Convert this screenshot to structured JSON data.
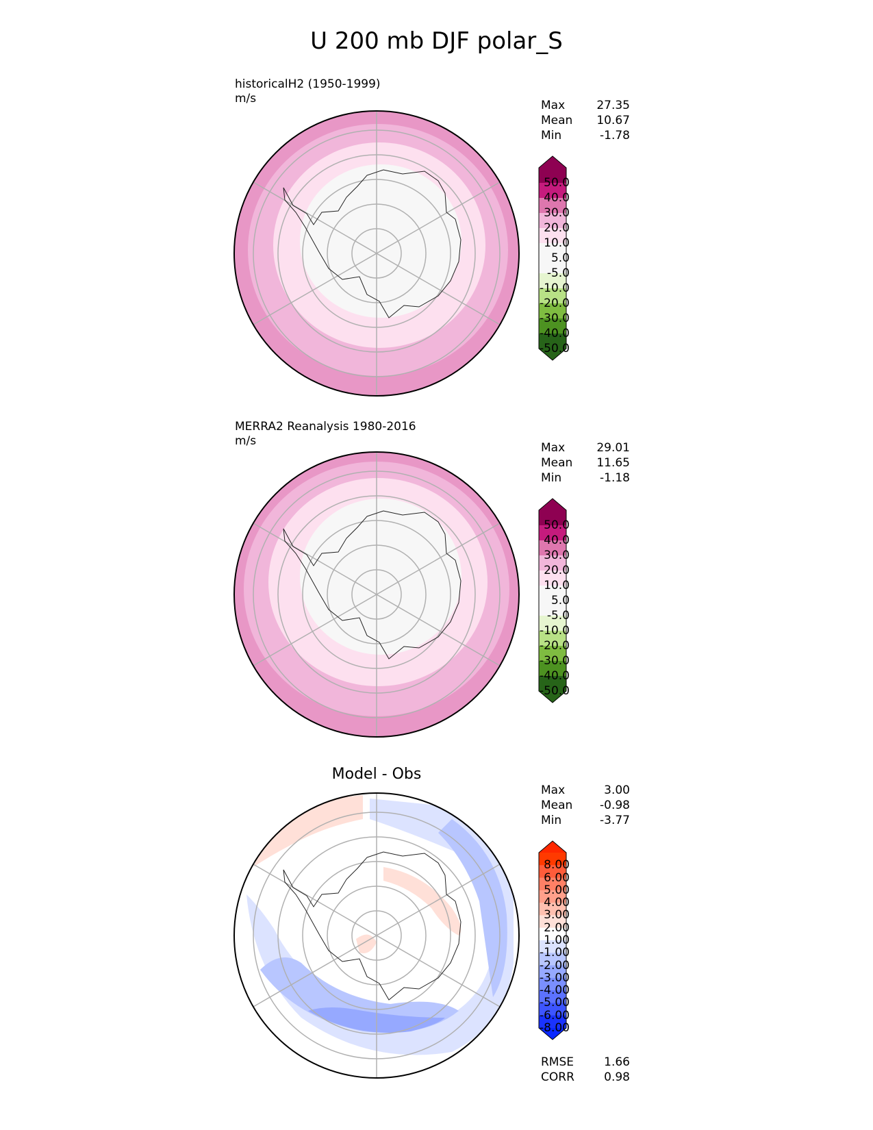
{
  "title": "U 200 mb DJF polar_S",
  "panels": [
    {
      "label": "historicalH2 (1950-1999)",
      "units": "m/s",
      "stats": {
        "max_label": "Max",
        "max": "27.35",
        "mean_label": "Mean",
        "mean": "10.67",
        "min_label": "Min",
        "min": "-1.78"
      }
    },
    {
      "label": "MERRA2 Reanalysis 1980-2016",
      "units": "m/s",
      "stats": {
        "max_label": "Max",
        "max": "29.01",
        "mean_label": "Mean",
        "mean": "11.65",
        "min_label": "Min",
        "min": "-1.18"
      }
    },
    {
      "label": "Model - Obs",
      "stats": {
        "max_label": "Max",
        "max": "3.00",
        "mean_label": "Mean",
        "mean": "-0.98",
        "min_label": "Min",
        "min": "-3.77"
      },
      "rmse_label": "RMSE",
      "rmse": "1.66",
      "corr_label": "CORR",
      "corr": "0.98"
    }
  ],
  "colorbars": {
    "field": {
      "labels": [
        "50.0",
        "40.0",
        "30.0",
        "20.0",
        "10.0",
        "5.0",
        "-5.0",
        "-10.0",
        "-20.0",
        "-30.0",
        "-40.0",
        "-50.0"
      ],
      "colors": [
        "#8e0152",
        "#c51b7d",
        "#de77ae",
        "#f1b6da",
        "#fde0ef",
        "#f7f7f7",
        "#f7f7f7",
        "#e6f5d0",
        "#b8e186",
        "#7fbc41",
        "#4d9221",
        "#276419"
      ],
      "top_color": "#8e0152",
      "bottom_color": "#276419"
    },
    "diff": {
      "labels": [
        "8.00",
        "6.00",
        "5.00",
        "4.00",
        "3.00",
        "2.00",
        "1.00",
        "-1.00",
        "-2.00",
        "-3.00",
        "-4.00",
        "-5.00",
        "-6.00",
        "-8.00"
      ],
      "colors": [
        "#ff3a00",
        "#ff5c3a",
        "#ff8065",
        "#ffa08b",
        "#ffc0b0",
        "#ffe0d8",
        "#ffffff",
        "#dce3ff",
        "#b8c6ff",
        "#96a9ff",
        "#7a8fff",
        "#5c72ff",
        "#3d55ff",
        "#1a33ff"
      ],
      "top_color": "#ff2800",
      "bottom_color": "#0a28ff"
    }
  }
}
